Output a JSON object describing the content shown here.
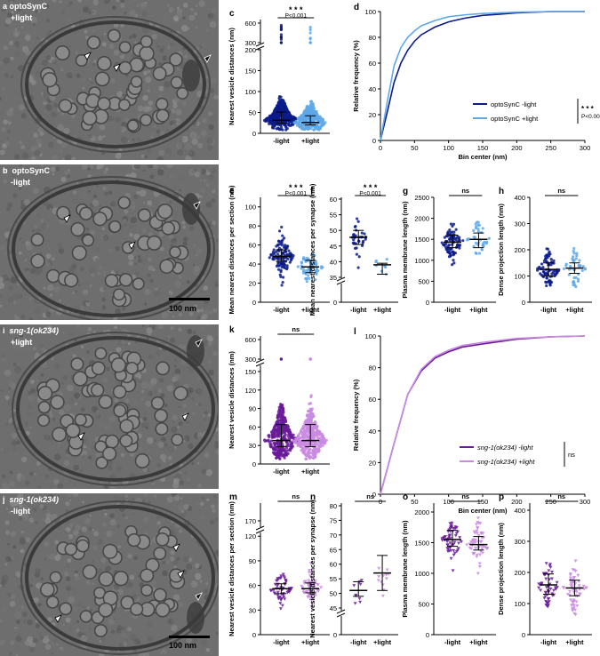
{
  "colors": {
    "optoDark": "#0b1b8c",
    "optoLight": "#5fa8e8",
    "sngDark": "#6a1a9a",
    "sngLight": "#c98ae0",
    "em_bg": "#707070"
  },
  "em_panels": {
    "a": {
      "letter": "a",
      "line1": "optoSynC",
      "line2": "+light"
    },
    "b": {
      "letter": "b",
      "line1": "optoSynC",
      "line2": "-light",
      "scale": "100 nm"
    },
    "i": {
      "letter": "i",
      "line1": "sng-1(ok234)",
      "line2": "+light"
    },
    "j": {
      "letter": "j",
      "line1": "sng-1(ok234)",
      "line2": "-light",
      "scale": "100 nm"
    }
  },
  "charts": {
    "c": {
      "letter": "c",
      "ylabel": "Nearest vesicle distances (nm)",
      "yticks_low": [
        "0",
        "50",
        "100",
        "150",
        "200"
      ],
      "yticks_high": [
        "300",
        "600"
      ],
      "xlabels": [
        "-light",
        "+light"
      ],
      "sig": "* * *",
      "p": "P<0.001",
      "median": [
        31,
        26
      ],
      "q1": [
        24,
        20
      ],
      "q3": [
        51,
        42
      ]
    },
    "e": {
      "letter": "e",
      "ylabel": "Mean nearest distances per section (nm)",
      "yticks": [
        "0",
        "20",
        "40",
        "60",
        "80",
        "100"
      ],
      "xlabels": [
        "-light",
        "+light"
      ],
      "sig": "* * *",
      "p": "P<0.001",
      "median": [
        48,
        37
      ]
    },
    "f": {
      "letter": "f",
      "ylabel": "Mean nearest distances per synapse (nm)",
      "yticks_low": [
        "0"
      ],
      "yticks_high": [
        "35",
        "40",
        "45",
        "50",
        "55",
        "60"
      ],
      "xlabels": [
        "-light",
        "+light"
      ],
      "sig": "* * *",
      "p": "P<0.001",
      "median": [
        47.8,
        39
      ]
    },
    "g": {
      "letter": "g",
      "ylabel": "Plasma membrane length (nm)",
      "yticks": [
        "0",
        "500",
        "1000",
        "1500",
        "2000",
        "2500"
      ],
      "xlabels": [
        "-light",
        "+light"
      ],
      "sig": "ns",
      "median": [
        1430,
        1500
      ]
    },
    "h": {
      "letter": "h",
      "ylabel": "Dense projection length (nm)",
      "yticks": [
        "0",
        "100",
        "200",
        "300",
        "400"
      ],
      "xlabels": [
        "-light",
        "+light"
      ],
      "sig": "ns",
      "median": [
        125,
        130
      ]
    },
    "k": {
      "letter": "k",
      "ylabel": "Nearest vesicle distances (nm)",
      "yticks_low": [
        "0",
        "30",
        "60",
        "90",
        "120",
        "150"
      ],
      "yticks_high": [
        "300",
        "600"
      ],
      "xlabels": [
        "-light",
        "+light"
      ],
      "sig": "ns",
      "median": [
        38,
        38
      ]
    },
    "m": {
      "letter": "m",
      "ylabel": "Nearest vesicle distances per section (nm)",
      "yticks_low": [
        "0",
        "30",
        "60",
        "90",
        "120"
      ],
      "yticks_high": [
        "170"
      ],
      "xlabels": [
        "-light",
        "+light"
      ],
      "sig": "ns",
      "median": [
        56,
        56
      ]
    },
    "n": {
      "letter": "n",
      "ylabel": "Nearest vesicle distances per synapse (nm)",
      "yticks_low": [
        "0"
      ],
      "yticks_high": [
        "45",
        "50",
        "55",
        "60",
        "65",
        "70",
        "75",
        "80"
      ],
      "xlabels": [
        "-light",
        "+light"
      ],
      "sig": "ns",
      "median": [
        51,
        57
      ]
    },
    "o": {
      "letter": "o",
      "ylabel": "Plasma membrane length (nm)",
      "yticks": [
        "0",
        "500",
        "1000",
        "1500",
        "2000"
      ],
      "xlabels": [
        "-light",
        "+light"
      ],
      "sig": "ns",
      "median": [
        1550,
        1470
      ]
    },
    "p": {
      "letter": "p",
      "ylabel": "Dense projection length (nm)",
      "yticks": [
        "0",
        "100",
        "200",
        "300",
        "400"
      ],
      "xlabels": [
        "-light",
        "+light"
      ],
      "sig": "ns",
      "median": [
        160,
        150
      ]
    },
    "d": {
      "letter": "d",
      "ylabel": "Relative frequency (%)",
      "xlabel": "Bin center (nm)",
      "yticks": [
        "0",
        "20",
        "40",
        "60",
        "80",
        "100"
      ],
      "xticks": [
        "0",
        "50",
        "100",
        "150",
        "200",
        "250",
        "300"
      ],
      "legend": [
        "optoSynC -light",
        "optoSynC +light"
      ],
      "sig": "* * *",
      "p": "P<0.001"
    },
    "l": {
      "letter": "l",
      "ylabel": "Relative frequency (%)",
      "xlabel": "Bin center (nm)",
      "yticks": [
        "0",
        "20",
        "40",
        "60",
        "80",
        "100"
      ],
      "xticks": [
        "0",
        "50",
        "100",
        "150",
        "200",
        "250",
        "300"
      ],
      "legend": [
        "sng-1(ok234) -light",
        "sng-1(ok234) +light"
      ],
      "sig": "ns"
    }
  },
  "chart_data": [
    {
      "panel": "d",
      "type": "line",
      "xlabel": "Bin center (nm)",
      "ylabel": "Relative frequency (%)",
      "xlim": [
        0,
        300
      ],
      "ylim": [
        0,
        100
      ],
      "x": [
        0,
        10,
        20,
        30,
        40,
        50,
        60,
        80,
        100,
        125,
        150,
        175,
        200,
        250,
        300
      ],
      "series": [
        {
          "name": "optoSynC -light",
          "values": [
            0,
            22,
            45,
            60,
            70,
            77,
            82,
            88,
            92,
            95,
            97,
            98,
            99,
            100,
            100
          ]
        },
        {
          "name": "optoSynC +light",
          "values": [
            0,
            30,
            58,
            72,
            80,
            85,
            89,
            93,
            96,
            97.5,
            98.5,
            99,
            99.5,
            100,
            100
          ]
        }
      ]
    },
    {
      "panel": "l",
      "type": "line",
      "xlabel": "Bin center (nm)",
      "ylabel": "Relative frequency (%)",
      "xlim": [
        0,
        300
      ],
      "ylim": [
        0,
        100
      ],
      "x": [
        0,
        20,
        40,
        60,
        80,
        100,
        120,
        150,
        200,
        250,
        300
      ],
      "series": [
        {
          "name": "sng-1(ok234) -light",
          "values": [
            0,
            32,
            63,
            78,
            86,
            90,
            93,
            95,
            98,
            99.5,
            100
          ]
        },
        {
          "name": "sng-1(ok234) +light",
          "values": [
            0,
            32,
            63,
            79,
            87,
            91,
            94,
            96,
            98.5,
            99.5,
            100
          ]
        }
      ]
    }
  ]
}
